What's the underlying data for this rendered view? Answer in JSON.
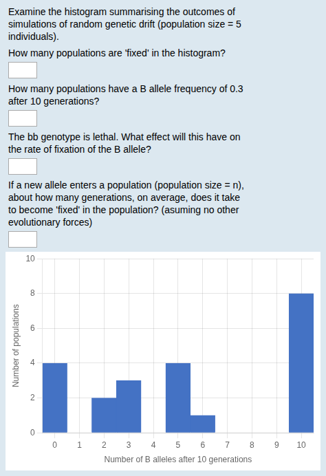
{
  "chart_data": {
    "type": "bar",
    "x": [
      0,
      1,
      2,
      3,
      4,
      5,
      6,
      7,
      8,
      9,
      10
    ],
    "values": [
      4,
      0,
      2,
      3,
      0,
      4,
      1,
      0,
      0,
      0,
      8
    ],
    "color": "#4472c4",
    "x_label": "Number of B alleles after 10 generations",
    "y_label": "Number of populations",
    "xlim": [
      -0.5,
      10.5
    ],
    "xticks": [
      0,
      1,
      2,
      3,
      4,
      5,
      6,
      7,
      8,
      9,
      10
    ],
    "ylim": [
      0,
      10
    ],
    "yticks": [
      0,
      2,
      4,
      6,
      8,
      10
    ],
    "grid": true,
    "annotations": [
      [
        "Examine the histogram summarising the outcomes of",
        "simulations of random genetic drift (population size = 5",
        "individuals)."
      ],
      [
        "How many populations are 'fixed' in the histogram?"
      ],
      [
        "How many populations have a B allele frequency of 0.3",
        "after 10 generations?"
      ],
      [
        "The bb genotype is lethal. What effect will this have on",
        "the rate of fixation of the B allele?"
      ],
      [
        "If a new allele enters a population (population size = n),",
        "about how many generations, on average, does it take",
        "to become 'fixed' in the population? (asuming no other",
        "evolutionary forces)"
      ]
    ]
  }
}
